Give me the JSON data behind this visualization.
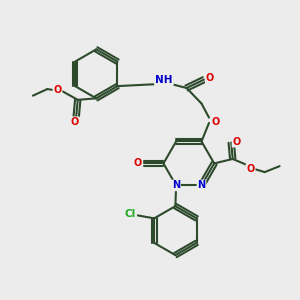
{
  "bg_color": "#ececec",
  "bond_color": "#2d4a2d",
  "bond_width": 1.5,
  "atom_colors": {
    "O": "#dd0000",
    "N": "#0000cc",
    "Cl": "#22aa22",
    "C": "#2d4a2d",
    "H": "#666666"
  },
  "figsize": [
    3.0,
    3.0
  ],
  "dpi": 100,
  "xlim": [
    0,
    10
  ],
  "ylim": [
    0,
    10
  ]
}
